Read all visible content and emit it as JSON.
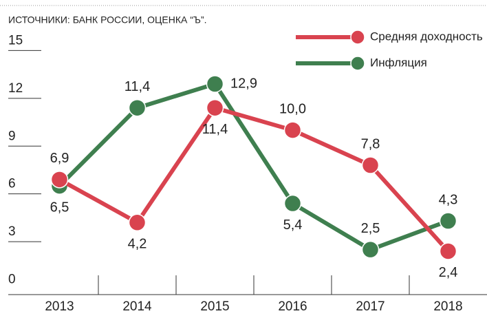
{
  "chart_data": {
    "type": "line",
    "source": "ИСТОЧНИКИ: БАНК РОССИИ, ОЦЕНКА “Ъ”.",
    "categories": [
      "2013",
      "2014",
      "2015",
      "2016",
      "2017",
      "2018"
    ],
    "series": [
      {
        "name": "Средняя доходность",
        "color": "#d9434f",
        "values": [
          6.9,
          4.2,
          11.4,
          10.0,
          7.8,
          2.4
        ],
        "value_labels": [
          "6,9",
          "4,2",
          "11,4",
          "10,0",
          "7,8",
          "2,4"
        ]
      },
      {
        "name": "Инфляция",
        "color": "#3f7f4f",
        "values": [
          6.5,
          11.4,
          12.9,
          5.4,
          2.5,
          4.3
        ],
        "value_labels": [
          "6,5",
          "11,4",
          "12,9",
          "5,4",
          "2,5",
          "4,3"
        ]
      }
    ],
    "ylim": [
      0,
      15
    ],
    "yticks": [
      0,
      3,
      6,
      9,
      12,
      15
    ],
    "legend": "top-right"
  }
}
